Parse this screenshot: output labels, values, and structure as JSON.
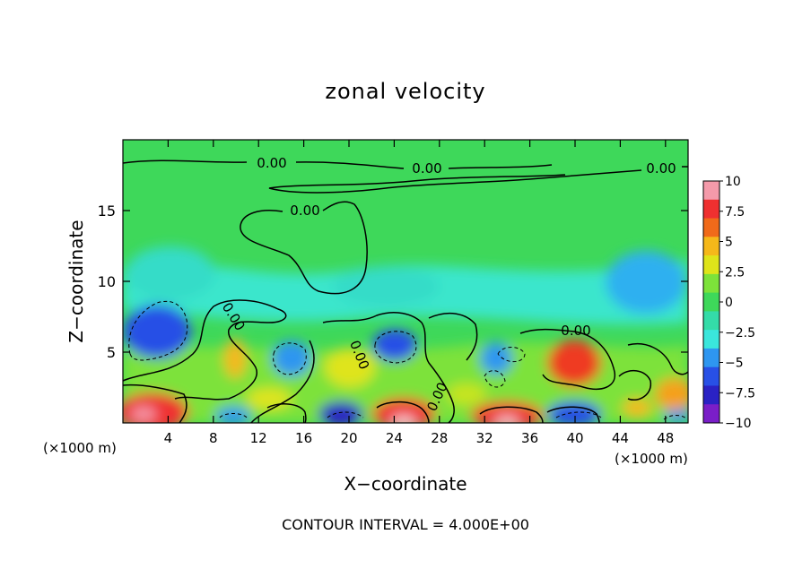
{
  "chart_data": {
    "type": "heatmap",
    "title": "zonal velocity",
    "xlabel": "X−coordinate",
    "ylabel": "Z−coordinate",
    "x_unit_left": "(×1000 m)",
    "x_unit_right": "(×1000 m)",
    "xlim": [
      0,
      50
    ],
    "ylim": [
      0,
      20
    ],
    "x_ticks": [
      4,
      8,
      12,
      16,
      20,
      24,
      28,
      32,
      36,
      40,
      44,
      48
    ],
    "y_ticks": [
      5,
      10,
      15
    ],
    "colorbar": {
      "min": -10,
      "max": 10,
      "tick_labels": [
        "10",
        "7.5",
        "5",
        "2.5",
        "0",
        "−2.5",
        "−5",
        "−7.5",
        "−10"
      ],
      "colors": [
        "#f49aaa",
        "#ef3030",
        "#f06a1a",
        "#f5b81a",
        "#dfe41a",
        "#7de23a",
        "#3ed85a",
        "#34dca8",
        "#3ae6dc",
        "#2e96f0",
        "#2850e6",
        "#2a22c4",
        "#7a1ec8"
      ]
    },
    "contour_interval_text": "CONTOUR INTERVAL = 4.000E+00",
    "contour_labels": [
      "0.00",
      "0.00",
      "0.00",
      "0.00",
      "0.00",
      "0.00",
      "0.00",
      "0.00"
    ],
    "features": [
      {
        "x": 4,
        "z": 6.8,
        "value": -6.5
      },
      {
        "x": 15,
        "z": 4.6,
        "value": -4.5
      },
      {
        "x": 24,
        "z": 5.5,
        "value": -5.5
      },
      {
        "x": 33,
        "z": 4.8,
        "value": -3.5
      },
      {
        "x": 41,
        "z": 4.4,
        "value": 6.5
      },
      {
        "x": 21,
        "z": 4.2,
        "value": 2.5
      },
      {
        "x": 2,
        "z": 1.0,
        "value": 8.5
      },
      {
        "x": 24,
        "z": 0.6,
        "value": 9.5
      },
      {
        "x": 34,
        "z": 0.6,
        "value": 9.0
      },
      {
        "x": 19,
        "z": 0.8,
        "value": -6.0
      },
      {
        "x": 40,
        "z": 0.6,
        "value": -7.0
      },
      {
        "x": 48,
        "z": 2.0,
        "value": 4.0
      },
      {
        "x": 45,
        "z": 11.0,
        "value": -3.0
      },
      {
        "x": 6,
        "z": 11.0,
        "value": -2.8
      },
      {
        "x": 24,
        "z": 10.5,
        "value": -2.5
      }
    ]
  }
}
